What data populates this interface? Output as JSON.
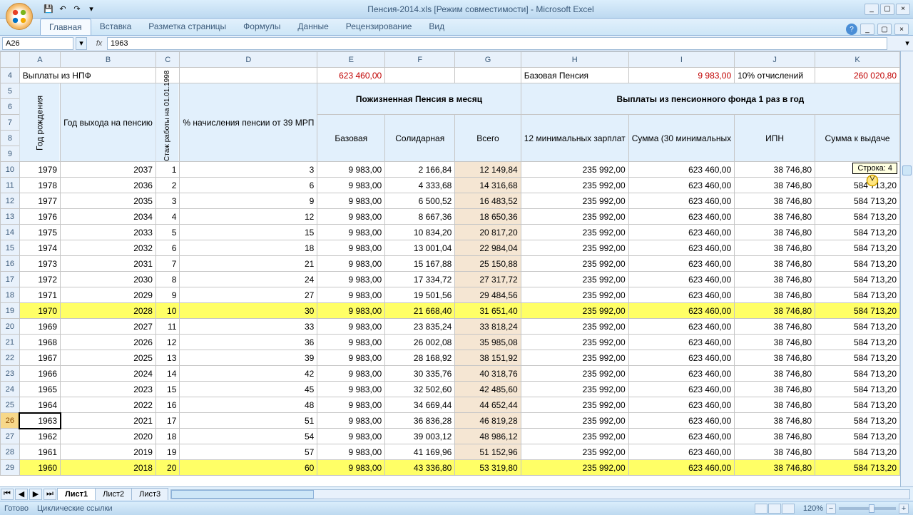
{
  "title": "Пенсия-2014.xls [Режим совместимости] - Microsoft Excel",
  "ribbon_tabs": [
    "Главная",
    "Вставка",
    "Разметка страницы",
    "Формулы",
    "Данные",
    "Рецензирование",
    "Вид"
  ],
  "active_ribbon_tab": 0,
  "name_box": "A26",
  "formula_value": "1963",
  "cols": {
    "letters": [
      "A",
      "B",
      "C",
      "D",
      "E",
      "F",
      "G",
      "H",
      "I",
      "J",
      "K"
    ],
    "widths": [
      70,
      70,
      40,
      70,
      110,
      110,
      110,
      130,
      130,
      120,
      130
    ],
    "colors": [
      "#e8f1fb",
      "#e8f1fb",
      "#e8f1fb",
      "#e8f1fb",
      "#e8f1fb",
      "#e8f1fb",
      "#e8f1fb",
      "#e8f1fb",
      "#e8f1fb",
      "#e8f1fb",
      "#e8f1fb"
    ]
  },
  "summary": {
    "label_npf": "Выплаты из НПФ",
    "val_e": "623 460,00",
    "label_base": "Базовая Пенсия",
    "val_i": "9 983,00",
    "label_10pct": "10% отчислений",
    "val_k": "260 020,80"
  },
  "header": {
    "a": "Год рождения",
    "b": "Год выхода на пенсию",
    "c": "Стаж работы на 01.01.1998",
    "d": "% начисления пенсии от 39 МРП",
    "monthly": "Пожизненная Пенсия в месяц",
    "yearly": "Выплаты из пенсионного фонда 1 раз в год",
    "e": "Базовая",
    "f": "Солидарная",
    "g": "Всего",
    "h": "12 минимальных зарплат",
    "i": "Сумма (30 минимальных",
    "j": "ИПН",
    "k": "Сумма к выдаче"
  },
  "row_headers_start": 4,
  "first_data_rownum": 10,
  "highlighted_rows": [
    19,
    29
  ],
  "selected_rownum": 26,
  "rows": [
    {
      "n": 10,
      "a": "1979",
      "b": "2037",
      "c": "1",
      "d": "3",
      "e": "9 983,00",
      "f": "2 166,84",
      "g": "12 149,84",
      "h": "235 992,00",
      "i": "623 460,00",
      "j": "38 746,80",
      "k": "584 713,20"
    },
    {
      "n": 11,
      "a": "1978",
      "b": "2036",
      "c": "2",
      "d": "6",
      "e": "9 983,00",
      "f": "4 333,68",
      "g": "14 316,68",
      "h": "235 992,00",
      "i": "623 460,00",
      "j": "38 746,80",
      "k": "584 713,20"
    },
    {
      "n": 12,
      "a": "1977",
      "b": "2035",
      "c": "3",
      "d": "9",
      "e": "9 983,00",
      "f": "6 500,52",
      "g": "16 483,52",
      "h": "235 992,00",
      "i": "623 460,00",
      "j": "38 746,80",
      "k": "584 713,20"
    },
    {
      "n": 13,
      "a": "1976",
      "b": "2034",
      "c": "4",
      "d": "12",
      "e": "9 983,00",
      "f": "8 667,36",
      "g": "18 650,36",
      "h": "235 992,00",
      "i": "623 460,00",
      "j": "38 746,80",
      "k": "584 713,20"
    },
    {
      "n": 14,
      "a": "1975",
      "b": "2033",
      "c": "5",
      "d": "15",
      "e": "9 983,00",
      "f": "10 834,20",
      "g": "20 817,20",
      "h": "235 992,00",
      "i": "623 460,00",
      "j": "38 746,80",
      "k": "584 713,20"
    },
    {
      "n": 15,
      "a": "1974",
      "b": "2032",
      "c": "6",
      "d": "18",
      "e": "9 983,00",
      "f": "13 001,04",
      "g": "22 984,04",
      "h": "235 992,00",
      "i": "623 460,00",
      "j": "38 746,80",
      "k": "584 713,20"
    },
    {
      "n": 16,
      "a": "1973",
      "b": "2031",
      "c": "7",
      "d": "21",
      "e": "9 983,00",
      "f": "15 167,88",
      "g": "25 150,88",
      "h": "235 992,00",
      "i": "623 460,00",
      "j": "38 746,80",
      "k": "584 713,20"
    },
    {
      "n": 17,
      "a": "1972",
      "b": "2030",
      "c": "8",
      "d": "24",
      "e": "9 983,00",
      "f": "17 334,72",
      "g": "27 317,72",
      "h": "235 992,00",
      "i": "623 460,00",
      "j": "38 746,80",
      "k": "584 713,20"
    },
    {
      "n": 18,
      "a": "1971",
      "b": "2029",
      "c": "9",
      "d": "27",
      "e": "9 983,00",
      "f": "19 501,56",
      "g": "29 484,56",
      "h": "235 992,00",
      "i": "623 460,00",
      "j": "38 746,80",
      "k": "584 713,20"
    },
    {
      "n": 19,
      "a": "1970",
      "b": "2028",
      "c": "10",
      "d": "30",
      "e": "9 983,00",
      "f": "21 668,40",
      "g": "31 651,40",
      "h": "235 992,00",
      "i": "623 460,00",
      "j": "38 746,80",
      "k": "584 713,20"
    },
    {
      "n": 20,
      "a": "1969",
      "b": "2027",
      "c": "11",
      "d": "33",
      "e": "9 983,00",
      "f": "23 835,24",
      "g": "33 818,24",
      "h": "235 992,00",
      "i": "623 460,00",
      "j": "38 746,80",
      "k": "584 713,20"
    },
    {
      "n": 21,
      "a": "1968",
      "b": "2026",
      "c": "12",
      "d": "36",
      "e": "9 983,00",
      "f": "26 002,08",
      "g": "35 985,08",
      "h": "235 992,00",
      "i": "623 460,00",
      "j": "38 746,80",
      "k": "584 713,20"
    },
    {
      "n": 22,
      "a": "1967",
      "b": "2025",
      "c": "13",
      "d": "39",
      "e": "9 983,00",
      "f": "28 168,92",
      "g": "38 151,92",
      "h": "235 992,00",
      "i": "623 460,00",
      "j": "38 746,80",
      "k": "584 713,20"
    },
    {
      "n": 23,
      "a": "1966",
      "b": "2024",
      "c": "14",
      "d": "42",
      "e": "9 983,00",
      "f": "30 335,76",
      "g": "40 318,76",
      "h": "235 992,00",
      "i": "623 460,00",
      "j": "38 746,80",
      "k": "584 713,20"
    },
    {
      "n": 24,
      "a": "1965",
      "b": "2023",
      "c": "15",
      "d": "45",
      "e": "9 983,00",
      "f": "32 502,60",
      "g": "42 485,60",
      "h": "235 992,00",
      "i": "623 460,00",
      "j": "38 746,80",
      "k": "584 713,20"
    },
    {
      "n": 25,
      "a": "1964",
      "b": "2022",
      "c": "16",
      "d": "48",
      "e": "9 983,00",
      "f": "34 669,44",
      "g": "44 652,44",
      "h": "235 992,00",
      "i": "623 460,00",
      "j": "38 746,80",
      "k": "584 713,20"
    },
    {
      "n": 26,
      "a": "1963",
      "b": "2021",
      "c": "17",
      "d": "51",
      "e": "9 983,00",
      "f": "36 836,28",
      "g": "46 819,28",
      "h": "235 992,00",
      "i": "623 460,00",
      "j": "38 746,80",
      "k": "584 713,20"
    },
    {
      "n": 27,
      "a": "1962",
      "b": "2020",
      "c": "18",
      "d": "54",
      "e": "9 983,00",
      "f": "39 003,12",
      "g": "48 986,12",
      "h": "235 992,00",
      "i": "623 460,00",
      "j": "38 746,80",
      "k": "584 713,20"
    },
    {
      "n": 28,
      "a": "1961",
      "b": "2019",
      "c": "19",
      "d": "57",
      "e": "9 983,00",
      "f": "41 169,96",
      "g": "51 152,96",
      "h": "235 992,00",
      "i": "623 460,00",
      "j": "38 746,80",
      "k": "584 713,20"
    },
    {
      "n": 29,
      "a": "1960",
      "b": "2018",
      "c": "20",
      "d": "60",
      "e": "9 983,00",
      "f": "43 336,80",
      "g": "53 319,80",
      "h": "235 992,00",
      "i": "623 460,00",
      "j": "38 746,80",
      "k": "584 713,20"
    }
  ],
  "sheet_tabs": [
    "Лист1",
    "Лист2",
    "Лист3"
  ],
  "active_sheet": 0,
  "status": {
    "ready": "Готово",
    "circular": "Циклические ссылки",
    "zoom": "120%"
  },
  "scroll_tip": "Строка: 4",
  "style": {
    "hl_bg": "#ffff66",
    "g_bg": "#f5e6d3",
    "hdr_bg": "#e2f0fc",
    "red_text": "#c00000",
    "grid_border": "#c6c6c6",
    "header_bg": "#e8f1fb"
  }
}
